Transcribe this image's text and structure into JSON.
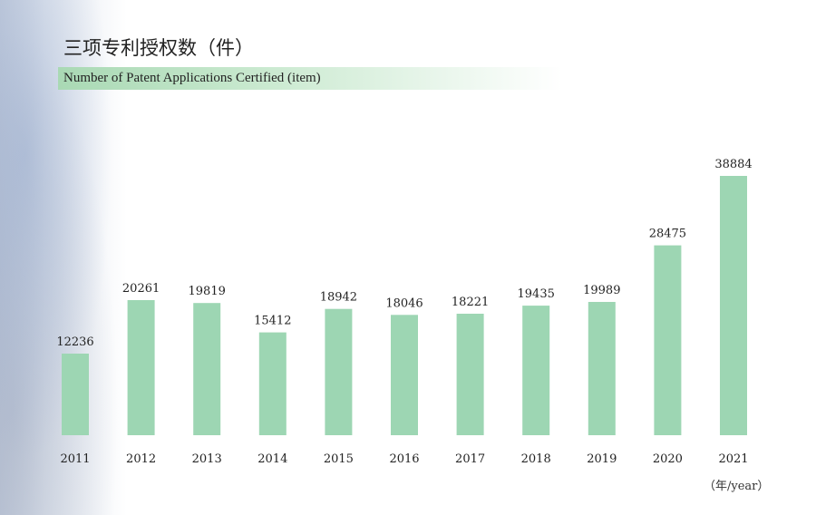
{
  "chart_data": {
    "type": "bar",
    "title": "三项专利授权数（件）",
    "subtitle": "Number of Patent Applications Certified (item)",
    "categories": [
      "2011",
      "2012",
      "2013",
      "2014",
      "2015",
      "2016",
      "2017",
      "2018",
      "2019",
      "2020",
      "2021"
    ],
    "values": [
      12236,
      20261,
      19819,
      15412,
      18942,
      18046,
      18221,
      19435,
      19989,
      28475,
      38884
    ],
    "unit_label": "（年/year）",
    "bar_color": "#9dd6b3",
    "grid": false,
    "legend": "none"
  }
}
